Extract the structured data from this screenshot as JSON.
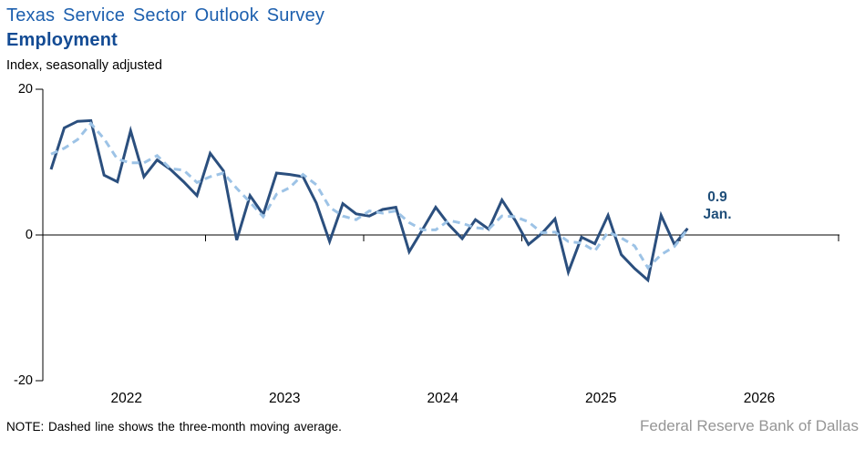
{
  "header": {
    "title": "Texas Service Sector Outlook Survey",
    "subtitle": "Employment",
    "units_label": "Index, seasonally adjusted"
  },
  "chart_data": {
    "type": "line",
    "frequency": "monthly",
    "x_start": "Jan 2022",
    "x_end": "Jan 2026",
    "x_tick_labels": [
      "2022",
      "2023",
      "2024",
      "2025",
      "2026"
    ],
    "y_tick_labels": [
      "20",
      "0",
      "-20"
    ],
    "ylim": [
      -20,
      20
    ],
    "grid": false,
    "legend_position": "none",
    "series": [
      {
        "name": "Employment index (monthly)",
        "style": "solid",
        "color": "#2B4F7E",
        "values": [
          9.0,
          14.7,
          15.6,
          15.7,
          8.2,
          7.3,
          14.3,
          8.0,
          10.3,
          9.0,
          7.3,
          5.4,
          11.2,
          8.8,
          -0.7,
          5.4,
          2.8,
          8.5,
          8.3,
          8.0,
          4.4,
          -0.9,
          4.3,
          2.9,
          2.6,
          3.5,
          3.8,
          -2.3,
          0.7,
          3.8,
          1.4,
          -0.5,
          2.1,
          0.8,
          4.8,
          2.0,
          -1.3,
          0.2,
          2.2,
          -5.1,
          -0.3,
          -1.2,
          2.7,
          -2.7,
          -4.6,
          -6.2,
          2.7,
          -1.3,
          0.9
        ]
      },
      {
        "name": "Three-month moving average",
        "style": "dashed",
        "color": "#9DC3E6",
        "values": [
          11.1,
          11.9,
          13.1,
          15.3,
          13.2,
          10.4,
          9.9,
          9.9,
          10.9,
          9.1,
          8.9,
          7.2,
          8.0,
          8.5,
          6.4,
          4.5,
          2.5,
          5.6,
          6.5,
          8.3,
          6.9,
          3.8,
          2.6,
          2.1,
          3.3,
          3.0,
          3.3,
          1.7,
          0.7,
          0.7,
          2.0,
          1.6,
          1.0,
          0.8,
          2.6,
          2.5,
          1.8,
          0.3,
          0.4,
          -0.9,
          -1.1,
          -2.2,
          0.4,
          -0.4,
          -1.5,
          -4.5,
          -2.7,
          -1.6,
          0.8
        ]
      }
    ],
    "annotation": {
      "value": "0.9",
      "label": "Jan."
    }
  },
  "note": "NOTE: Dashed line shows the three-month moving average.",
  "source": "Federal Reserve Bank of Dallas",
  "colors": {
    "title": "#1C5FAE",
    "subtitle": "#134B94",
    "solid_line": "#2B4F7E",
    "dashed_line": "#9DC3E6",
    "annotation": "#1F4E79",
    "axis": "#000000",
    "source_text": "#959595"
  }
}
